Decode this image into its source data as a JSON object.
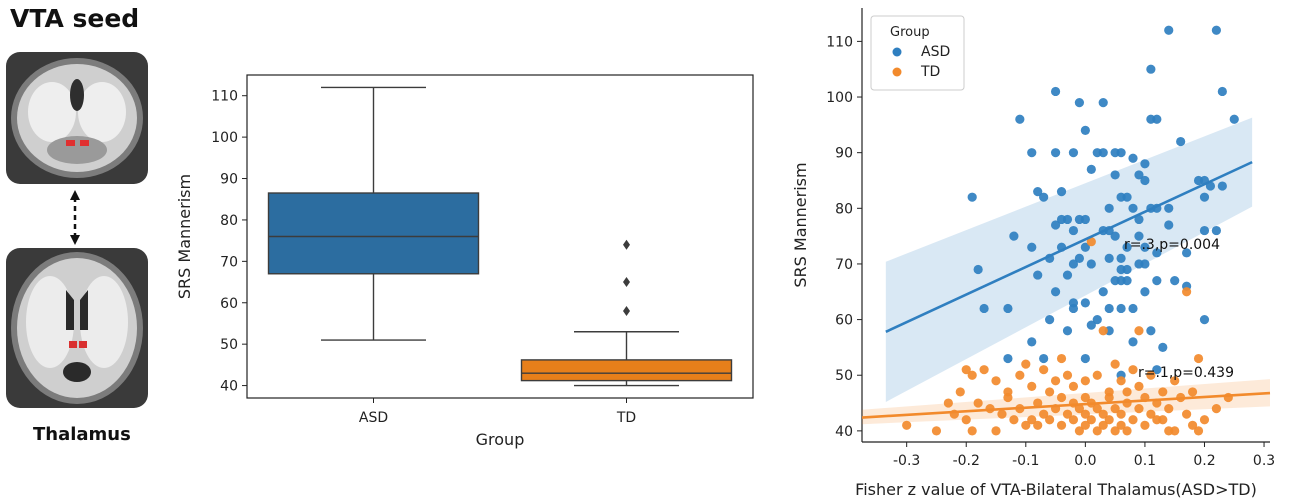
{
  "panel_a": {
    "title": "VTA seed",
    "caption": "Thalamus"
  },
  "chart_data": [
    {
      "type": "box",
      "xlabel": "Group",
      "ylabel": "SRS Mannerism",
      "categories": [
        "ASD",
        "TD"
      ],
      "ylim": [
        37,
        115
      ],
      "yticks": [
        40,
        50,
        60,
        70,
        80,
        90,
        100,
        110
      ],
      "grid": false,
      "boxes": [
        {
          "name": "ASD",
          "color": "#2c6da0",
          "whisker_low": 51,
          "q1": 67,
          "median": 76,
          "q3": 86.5,
          "whisker_high": 112,
          "outliers": []
        },
        {
          "name": "TD",
          "color": "#e77f1a",
          "whisker_low": 40,
          "q1": 41.2,
          "median": 43,
          "q3": 46.2,
          "whisker_high": 53,
          "outliers": [
            58,
            65,
            74
          ]
        }
      ]
    },
    {
      "type": "scatter",
      "xlabel": "Fisher z value of VTA-Bilateral Thalamus(ASD>TD)",
      "ylabel": "SRS Mannerism",
      "xlim": [
        -0.375,
        0.31
      ],
      "ylim": [
        38,
        116
      ],
      "xticks": [
        -0.3,
        -0.2,
        -0.1,
        0.0,
        0.1,
        0.2,
        0.3
      ],
      "yticks": [
        40,
        50,
        60,
        70,
        80,
        90,
        100,
        110
      ],
      "grid": false,
      "legend": {
        "title": "Group",
        "placement": "top-left"
      },
      "series": [
        {
          "name": "ASD",
          "color": "#2f7fc0",
          "fit": {
            "x": [
              -0.335,
              0.28
            ],
            "y": [
              57.8,
              88.3
            ],
            "band_lower": [
              45.2,
              80.3
            ],
            "band_upper": [
              70.4,
              96.3
            ]
          },
          "annotation": "r=.3,p=0.004",
          "points": [
            [
              0.14,
              112
            ],
            [
              0.22,
              112
            ],
            [
              -0.05,
              101
            ],
            [
              0.03,
              99
            ],
            [
              -0.01,
              99
            ],
            [
              0.11,
              105
            ],
            [
              0.23,
              101
            ],
            [
              -0.11,
              96
            ],
            [
              0.11,
              96
            ],
            [
              0.12,
              96
            ],
            [
              0.25,
              96
            ],
            [
              0.0,
              94
            ],
            [
              0.16,
              92
            ],
            [
              -0.09,
              90
            ],
            [
              -0.05,
              90
            ],
            [
              -0.02,
              90
            ],
            [
              0.02,
              90
            ],
            [
              0.03,
              90
            ],
            [
              0.05,
              90
            ],
            [
              0.06,
              90
            ],
            [
              0.08,
              89
            ],
            [
              0.1,
              88
            ],
            [
              0.01,
              87
            ],
            [
              0.05,
              86
            ],
            [
              0.09,
              86
            ],
            [
              0.1,
              85
            ],
            [
              0.19,
              85
            ],
            [
              0.2,
              85
            ],
            [
              0.21,
              84
            ],
            [
              0.23,
              84
            ],
            [
              -0.08,
              83
            ],
            [
              -0.04,
              83
            ],
            [
              -0.07,
              82
            ],
            [
              -0.19,
              82
            ],
            [
              0.06,
              82
            ],
            [
              0.07,
              82
            ],
            [
              0.2,
              82
            ],
            [
              0.04,
              80
            ],
            [
              0.08,
              80
            ],
            [
              0.11,
              80
            ],
            [
              0.12,
              80
            ],
            [
              0.14,
              80
            ],
            [
              -0.04,
              78
            ],
            [
              -0.01,
              78
            ],
            [
              -0.03,
              78
            ],
            [
              0.0,
              78
            ],
            [
              0.09,
              78
            ],
            [
              -0.05,
              77
            ],
            [
              0.14,
              77
            ],
            [
              -0.02,
              76
            ],
            [
              0.03,
              76
            ],
            [
              0.04,
              76
            ],
            [
              0.2,
              76
            ],
            [
              0.22,
              76
            ],
            [
              -0.12,
              75
            ],
            [
              0.05,
              75
            ],
            [
              0.09,
              75
            ],
            [
              -0.09,
              73
            ],
            [
              -0.04,
              73
            ],
            [
              0.0,
              73
            ],
            [
              0.07,
              73
            ],
            [
              0.1,
              73
            ],
            [
              0.12,
              72
            ],
            [
              0.17,
              72
            ],
            [
              -0.06,
              71
            ],
            [
              -0.01,
              71
            ],
            [
              0.04,
              71
            ],
            [
              0.06,
              71
            ],
            [
              -0.02,
              70
            ],
            [
              0.01,
              70
            ],
            [
              0.09,
              70
            ],
            [
              0.1,
              70
            ],
            [
              -0.18,
              69
            ],
            [
              0.06,
              69
            ],
            [
              0.07,
              69
            ],
            [
              -0.08,
              68
            ],
            [
              -0.03,
              68
            ],
            [
              0.05,
              67
            ],
            [
              0.06,
              67
            ],
            [
              0.07,
              67
            ],
            [
              0.12,
              67
            ],
            [
              0.15,
              67
            ],
            [
              -0.05,
              65
            ],
            [
              0.03,
              65
            ],
            [
              0.1,
              65
            ],
            [
              -0.02,
              63
            ],
            [
              0.0,
              63
            ],
            [
              -0.17,
              62
            ],
            [
              -0.13,
              62
            ],
            [
              -0.02,
              62
            ],
            [
              0.04,
              62
            ],
            [
              0.06,
              62
            ],
            [
              0.08,
              62
            ],
            [
              -0.06,
              60
            ],
            [
              0.02,
              60
            ],
            [
              0.2,
              60
            ],
            [
              -0.03,
              58
            ],
            [
              0.04,
              58
            ],
            [
              -0.09,
              56
            ],
            [
              0.08,
              56
            ],
            [
              0.13,
              55
            ],
            [
              -0.07,
              53
            ],
            [
              -0.13,
              53
            ],
            [
              0.0,
              53
            ],
            [
              0.12,
              51
            ],
            [
              0.06,
              50
            ],
            [
              0.01,
              59
            ],
            [
              0.17,
              66
            ],
            [
              0.11,
              58
            ]
          ]
        },
        {
          "name": "TD",
          "color": "#f28a2c",
          "fit": {
            "x": [
              -0.375,
              0.31
            ],
            "y": [
              42.4,
              46.8
            ],
            "band_lower": [
              41.2,
              44.4
            ],
            "band_upper": [
              43.8,
              49.3
            ]
          },
          "annotation": "r=.1,p=0.439",
          "points": [
            [
              -0.3,
              41
            ],
            [
              -0.2,
              42
            ],
            [
              -0.19,
              40
            ],
            [
              -0.18,
              45
            ],
            [
              -0.16,
              44
            ],
            [
              -0.14,
              43
            ],
            [
              -0.13,
              46
            ],
            [
              -0.12,
              42
            ],
            [
              -0.11,
              44
            ],
            [
              -0.1,
              41
            ],
            [
              -0.09,
              42
            ],
            [
              -0.08,
              45
            ],
            [
              -0.07,
              43
            ],
            [
              -0.06,
              42
            ],
            [
              -0.05,
              44
            ],
            [
              -0.04,
              41
            ],
            [
              -0.04,
              46
            ],
            [
              -0.03,
              43
            ],
            [
              -0.02,
              42
            ],
            [
              -0.02,
              45
            ],
            [
              -0.01,
              40
            ],
            [
              -0.01,
              44
            ],
            [
              0.0,
              41
            ],
            [
              0.0,
              43
            ],
            [
              0.0,
              46
            ],
            [
              0.01,
              42
            ],
            [
              0.01,
              45
            ],
            [
              0.02,
              40
            ],
            [
              0.02,
              44
            ],
            [
              0.03,
              41
            ],
            [
              0.03,
              43
            ],
            [
              0.04,
              42
            ],
            [
              0.04,
              46
            ],
            [
              0.05,
              40
            ],
            [
              0.05,
              44
            ],
            [
              0.06,
              41
            ],
            [
              0.06,
              43
            ],
            [
              0.07,
              40
            ],
            [
              0.07,
              45
            ],
            [
              0.08,
              42
            ],
            [
              0.09,
              44
            ],
            [
              0.1,
              41
            ],
            [
              0.11,
              43
            ],
            [
              0.12,
              45
            ],
            [
              0.13,
              42
            ],
            [
              0.14,
              44
            ],
            [
              0.15,
              40
            ],
            [
              0.16,
              46
            ],
            [
              0.17,
              43
            ],
            [
              0.18,
              41
            ],
            [
              0.2,
              42
            ],
            [
              0.24,
              46
            ],
            [
              -0.21,
              47
            ],
            [
              -0.19,
              50
            ],
            [
              -0.17,
              51
            ],
            [
              -0.15,
              49
            ],
            [
              -0.13,
              47
            ],
            [
              -0.11,
              50
            ],
            [
              -0.09,
              48
            ],
            [
              -0.07,
              51
            ],
            [
              -0.05,
              49
            ],
            [
              -0.03,
              50
            ],
            [
              -0.02,
              48
            ],
            [
              0.0,
              49
            ],
            [
              0.02,
              50
            ],
            [
              0.04,
              47
            ],
            [
              0.05,
              52
            ],
            [
              0.06,
              49
            ],
            [
              0.08,
              51
            ],
            [
              0.09,
              48
            ],
            [
              0.11,
              50
            ],
            [
              0.13,
              47
            ],
            [
              0.15,
              49
            ],
            [
              0.18,
              47
            ],
            [
              -0.22,
              43
            ],
            [
              -0.23,
              45
            ],
            [
              -0.08,
              41
            ],
            [
              -0.06,
              47
            ],
            [
              0.1,
              46
            ],
            [
              0.12,
              42
            ],
            [
              0.03,
              58
            ],
            [
              0.17,
              65
            ],
            [
              0.09,
              58
            ],
            [
              0.19,
              53
            ],
            [
              -0.1,
              52
            ],
            [
              -0.04,
              53
            ],
            [
              0.01,
              74
            ],
            [
              -0.2,
              51
            ],
            [
              0.14,
              40
            ],
            [
              0.19,
              40
            ],
            [
              -0.15,
              40
            ],
            [
              -0.25,
              40
            ],
            [
              0.07,
              47
            ],
            [
              0.22,
              44
            ]
          ]
        }
      ]
    }
  ]
}
